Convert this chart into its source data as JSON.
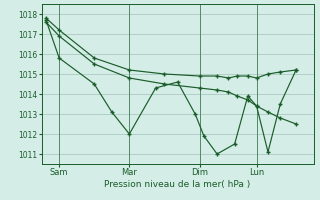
{
  "background_color": "#d4ede6",
  "grid_color": "#b0cfc6",
  "line_color": "#1a5c2a",
  "xlabel": "Pression niveau de la mer( hPa )",
  "ylim": [
    1010.5,
    1018.5
  ],
  "yticks": [
    1011,
    1012,
    1013,
    1014,
    1015,
    1016,
    1017,
    1018
  ],
  "x_tick_labels": [
    "Sam",
    "Mar",
    "Dim",
    "Lun"
  ],
  "x_tick_positions": [
    20,
    100,
    180,
    245
  ],
  "xlim": [
    0,
    310
  ],
  "series": [
    {
      "x": [
        5,
        20,
        60,
        100,
        140,
        180,
        200,
        213,
        223,
        235,
        245,
        258,
        272,
        290
      ],
      "y": [
        1017.8,
        1017.2,
        1015.8,
        1015.2,
        1015.0,
        1014.9,
        1014.9,
        1014.8,
        1014.9,
        1014.9,
        1014.8,
        1015.0,
        1015.1,
        1015.2
      ]
    },
    {
      "x": [
        5,
        20,
        60,
        100,
        140,
        180,
        200,
        213,
        223,
        235,
        245,
        258,
        272,
        290
      ],
      "y": [
        1017.6,
        1016.9,
        1015.5,
        1014.8,
        1014.5,
        1014.3,
        1014.2,
        1014.1,
        1013.9,
        1013.7,
        1013.4,
        1013.1,
        1012.8,
        1012.5
      ]
    },
    {
      "x": [
        5,
        20,
        60,
        80,
        100,
        130,
        155,
        175,
        185,
        200,
        220,
        235,
        245,
        258,
        272,
        290
      ],
      "y": [
        1017.7,
        1015.8,
        1014.5,
        1013.1,
        1012.0,
        1014.3,
        1014.6,
        1013.0,
        1011.9,
        1011.0,
        1011.5,
        1013.9,
        1013.4,
        1011.1,
        1013.5,
        1015.2
      ]
    }
  ]
}
